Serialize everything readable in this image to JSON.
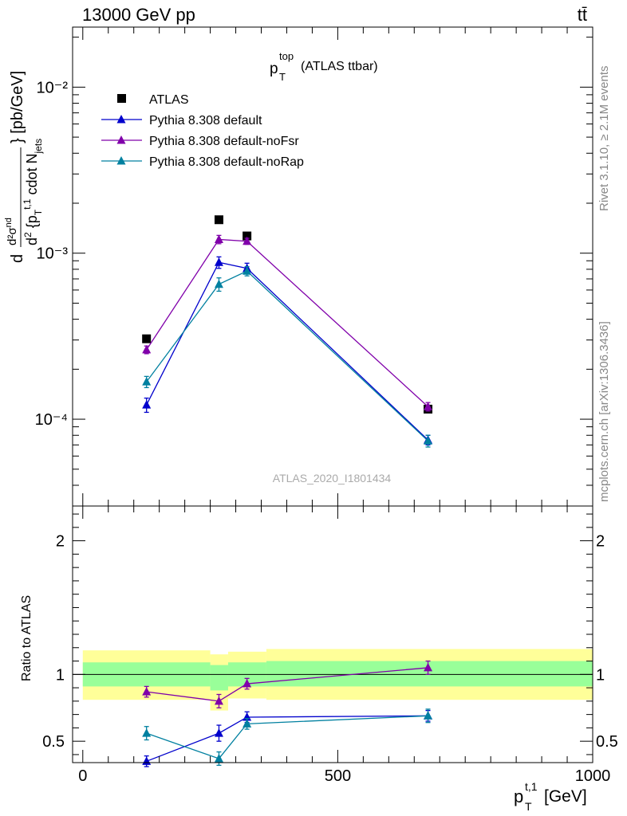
{
  "header": {
    "left": "13000 GeV pp",
    "right": "tt̄"
  },
  "side": {
    "rivet": "Rivet 3.1.10, ≥ 2.1M events",
    "mcplots": "mcplots.cern.ch [arXiv:1306.3436]"
  },
  "colors": {
    "atlas": "#000000",
    "default": "#0000cc",
    "noFsr": "#8000aa",
    "noRap": "#0080a0",
    "band_inner": "#99ff99",
    "band_outer": "#ffff99"
  },
  "chart_data": [
    {
      "type": "line",
      "title_main": "p",
      "title_sub": "T",
      "title_sup": "top",
      "title_rest": "(ATLAS ttbar)",
      "ylabel": "d²σ^{nd} / d²{p_T^{t,1} cdot N_jets} [pb/GeV]",
      "ylabel_d1": "d",
      "ylabel_num": "d²σ",
      "ylabel_num_sup": "nd",
      "ylabel_den_a": "d",
      "ylabel_den_b": "{p",
      "ylabel_den_sub": "T",
      "ylabel_den_sup": "t,1",
      "ylabel_den_c": "cdot N",
      "ylabel_den_sub2": "jets",
      "ylabel_unit": "} [pb/GeV]",
      "yscale": "log",
      "xlim": [
        -20,
        1000
      ],
      "ylim": [
        3e-05,
        0.023
      ],
      "ytick_labels": [
        "10⁻⁴",
        "10⁻³",
        "10⁻²"
      ],
      "watermark": "ATLAS_2020_I1801434",
      "legend_position": "top-left",
      "series": [
        {
          "name": "ATLAS",
          "marker": "square",
          "x": [
            125,
            267,
            322,
            677
          ],
          "y": [
            0.000305,
            0.00159,
            0.00127,
            0.000115
          ]
        },
        {
          "name": "Pythia 8.308 default",
          "marker": "triangle",
          "x": [
            125,
            267,
            322,
            677
          ],
          "y": [
            0.000122,
            0.00088,
            0.00081,
            7.5e-05
          ],
          "yerr": [
            1.2e-05,
            7e-05,
            6e-05,
            5e-06
          ]
        },
        {
          "name": "Pythia 8.308 default-noFsr",
          "marker": "triangle",
          "x": [
            125,
            267,
            322,
            677
          ],
          "y": [
            0.000262,
            0.00121,
            0.00118,
            0.000119
          ],
          "yerr": [
            1.4e-05,
            7e-05,
            5e-05,
            7e-06
          ]
        },
        {
          "name": "Pythia 8.308 default-noRap",
          "marker": "triangle",
          "x": [
            125,
            267,
            322,
            677
          ],
          "y": [
            0.000168,
            0.00065,
            0.00078,
            7.4e-05
          ],
          "yerr": [
            1.3e-05,
            6e-05,
            5e-05,
            6e-06
          ]
        }
      ]
    },
    {
      "type": "line",
      "ylabel": "Ratio to ATLAS",
      "xlabel_main": "p",
      "xlabel_sub": "T",
      "xlabel_sup": "t,1",
      "xlabel_unit": "[GeV]",
      "xlim": [
        -20,
        1000
      ],
      "ylim": [
        0.34,
        2.26
      ],
      "xtick_labels": [
        "0",
        "500",
        "1000"
      ],
      "ytick_labels": [
        "0.5",
        "1",
        "2"
      ],
      "reference_line": 1,
      "bands": {
        "bins": [
          [
            0,
            250
          ],
          [
            250,
            285
          ],
          [
            285,
            360
          ],
          [
            360,
            1000
          ]
        ],
        "inner_lo": [
          0.91,
          0.88,
          0.91,
          0.91
        ],
        "inner_hi": [
          1.09,
          1.07,
          1.09,
          1.1
        ],
        "outer_lo": [
          0.81,
          0.73,
          0.82,
          0.81
        ],
        "outer_hi": [
          1.18,
          1.15,
          1.17,
          1.19
        ]
      },
      "series": [
        {
          "name": "Pythia 8.308 default",
          "x": [
            125,
            267,
            322,
            677
          ],
          "y": [
            0.35,
            0.56,
            0.68,
            0.69
          ],
          "yerr": [
            0.04,
            0.06,
            0.04,
            0.04
          ]
        },
        {
          "name": "Pythia 8.308 default-noFsr",
          "x": [
            125,
            267,
            322,
            677
          ],
          "y": [
            0.87,
            0.8,
            0.93,
            1.05
          ],
          "yerr": [
            0.04,
            0.05,
            0.04,
            0.05
          ]
        },
        {
          "name": "Pythia 8.308 default-noRap",
          "x": [
            125,
            267,
            322,
            677
          ],
          "y": [
            0.56,
            0.37,
            0.63,
            0.69
          ],
          "yerr": [
            0.05,
            0.05,
            0.04,
            0.05
          ]
        }
      ]
    }
  ]
}
